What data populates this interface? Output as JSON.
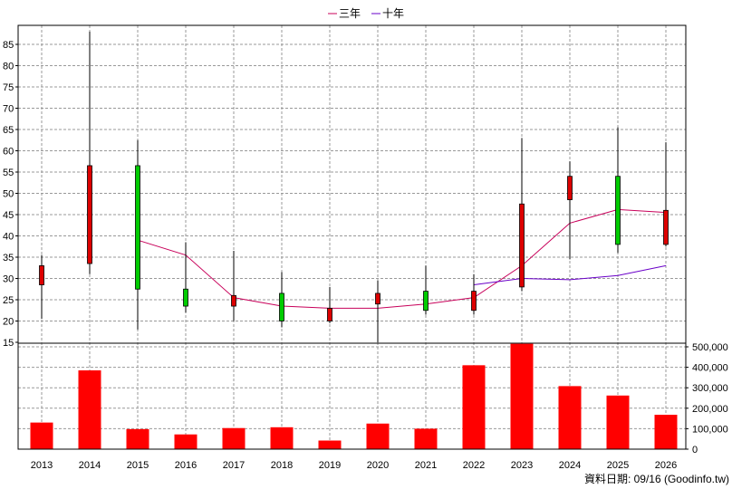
{
  "legend": [
    {
      "label": "三年",
      "color": "#c8005a"
    },
    {
      "label": "十年",
      "color": "#6a00c8"
    }
  ],
  "footer": "資料日期: 09/16  (Goodinfo.tw)",
  "colors": {
    "up": "#dd0000",
    "down": "#00cc00",
    "volume": "#ff0000",
    "grid": "#999999",
    "wick": "#000000"
  },
  "chart_data": [
    {
      "type": "candlestick",
      "title": "",
      "x": [
        "2013",
        "2014",
        "2015",
        "2016",
        "2017",
        "2018",
        "2019",
        "2020",
        "2021",
        "2022",
        "2023",
        "2024",
        "2025",
        "2026"
      ],
      "ylim": [
        15,
        89
      ],
      "yticks": [
        15,
        20,
        25,
        30,
        35,
        40,
        45,
        50,
        55,
        60,
        65,
        70,
        75,
        80,
        85
      ],
      "grid": true,
      "legend_position": "top-center",
      "candles": [
        {
          "x": "2013",
          "open": 28.5,
          "high": 35.5,
          "low": 20.5,
          "close": 33,
          "dir": "up"
        },
        {
          "x": "2014",
          "open": 33.5,
          "high": 88,
          "low": 31,
          "close": 56.5,
          "dir": "up"
        },
        {
          "x": "2015",
          "open": 56.5,
          "high": 62.5,
          "low": 18,
          "close": 27.5,
          "dir": "down"
        },
        {
          "x": "2016",
          "open": 27.5,
          "high": 38.5,
          "low": 22,
          "close": 23.5,
          "dir": "down"
        },
        {
          "x": "2017",
          "open": 23.5,
          "high": 36.5,
          "low": 20,
          "close": 26,
          "dir": "up"
        },
        {
          "x": "2018",
          "open": 26.5,
          "high": 31.5,
          "low": 18.5,
          "close": 20,
          "dir": "down"
        },
        {
          "x": "2019",
          "open": 20,
          "high": 28,
          "low": 19.5,
          "close": 23,
          "dir": "up"
        },
        {
          "x": "2020",
          "open": 24,
          "high": 29.5,
          "low": 15,
          "close": 26.5,
          "dir": "up"
        },
        {
          "x": "2021",
          "open": 27,
          "high": 33,
          "low": 21.5,
          "close": 22.5,
          "dir": "down"
        },
        {
          "x": "2022",
          "open": 22.5,
          "high": 31,
          "low": 21.5,
          "close": 27,
          "dir": "up"
        },
        {
          "x": "2023",
          "open": 28,
          "high": 63,
          "low": 27,
          "close": 47.5,
          "dir": "up"
        },
        {
          "x": "2024",
          "open": 48.5,
          "high": 57.5,
          "low": 34.5,
          "close": 54,
          "dir": "up"
        },
        {
          "x": "2025",
          "open": 54,
          "high": 65.5,
          "low": 36,
          "close": 38,
          "dir": "down"
        },
        {
          "x": "2026",
          "open": 38,
          "high": 62,
          "low": 37.5,
          "close": 46,
          "dir": "up"
        }
      ],
      "series": [
        {
          "name": "三年",
          "x": [
            "2015",
            "2016",
            "2017",
            "2018",
            "2019",
            "2020",
            "2021",
            "2022",
            "2023",
            "2024",
            "2025",
            "2026"
          ],
          "values": [
            39,
            35.5,
            25.5,
            23.5,
            23,
            23,
            24,
            25.5,
            33,
            43,
            46.2,
            45.5
          ]
        },
        {
          "name": "十年",
          "x": [
            "2022",
            "2023",
            "2024",
            "2025",
            "2026"
          ],
          "values": [
            28.5,
            30,
            29.7,
            30.7,
            33
          ]
        }
      ]
    },
    {
      "type": "bar",
      "title": "",
      "categories": [
        "2013",
        "2014",
        "2015",
        "2016",
        "2017",
        "2018",
        "2019",
        "2020",
        "2021",
        "2022",
        "2023",
        "2024",
        "2025",
        "2026"
      ],
      "values": [
        130000,
        385000,
        98000,
        72000,
        103000,
        107000,
        42000,
        125000,
        100000,
        410000,
        515000,
        308000,
        262000,
        168000
      ],
      "ylim": [
        0,
        540000
      ],
      "yticks": [
        0,
        100000,
        200000,
        300000,
        400000,
        500000
      ],
      "ytick_labels": [
        "0",
        "100,000",
        "200,000",
        "300,000",
        "400,000",
        "500,000"
      ],
      "grid": true
    }
  ]
}
